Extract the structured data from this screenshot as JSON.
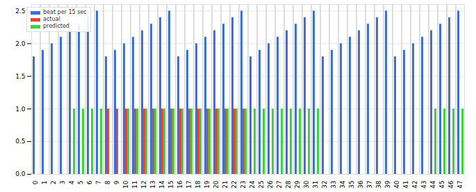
{
  "chart_data": {
    "type": "bar",
    "categories": [
      "0",
      "1",
      "2",
      "3",
      "4",
      "5",
      "6",
      "7",
      "8",
      "9",
      "10",
      "11",
      "12",
      "13",
      "14",
      "15",
      "16",
      "17",
      "18",
      "19",
      "20",
      "21",
      "22",
      "23",
      "24",
      "25",
      "26",
      "27",
      "28",
      "29",
      "30",
      "31",
      "32",
      "33",
      "34",
      "35",
      "36",
      "37",
      "38",
      "39",
      "40",
      "41",
      "42",
      "43",
      "44",
      "45",
      "46",
      "47"
    ],
    "series": [
      {
        "name": "beat per 15 sec",
        "color": "#3b6fdc",
        "values": [
          1.8,
          1.9,
          2.0,
          2.1,
          2.2,
          2.3,
          2.4,
          2.5,
          1.8,
          1.9,
          2.0,
          2.1,
          2.2,
          2.3,
          2.4,
          2.5,
          1.8,
          1.9,
          2.0,
          2.1,
          2.2,
          2.3,
          2.4,
          2.5,
          1.8,
          1.9,
          2.0,
          2.1,
          2.2,
          2.3,
          2.4,
          2.5,
          1.8,
          1.9,
          2.0,
          2.1,
          2.2,
          2.3,
          2.4,
          2.5,
          1.8,
          1.9,
          2.0,
          2.1,
          2.2,
          2.3,
          2.4,
          2.5
        ]
      },
      {
        "name": "actual",
        "color": "#e4473a",
        "values": [
          0,
          0,
          0,
          0,
          0,
          0,
          0,
          0,
          1,
          1,
          1,
          1,
          1,
          1,
          1,
          1,
          1,
          1,
          1,
          1,
          1,
          1,
          1,
          1,
          0,
          0,
          0,
          0,
          0,
          0,
          0,
          0,
          0,
          0,
          0,
          0,
          0,
          0,
          0,
          0,
          0,
          0,
          0,
          0,
          0,
          0,
          0,
          0
        ]
      },
      {
        "name": "predicted",
        "color": "#3ed23e",
        "values": [
          0,
          0,
          0,
          0,
          1,
          1,
          1,
          1,
          0,
          0,
          1,
          1,
          1,
          1,
          1,
          1,
          1,
          1,
          1,
          1,
          1,
          1,
          1,
          1,
          1,
          1,
          1,
          1,
          1,
          1,
          1,
          1,
          0,
          0,
          0,
          0,
          0,
          0,
          0,
          0,
          0,
          0,
          0,
          0,
          1,
          1,
          1,
          1
        ]
      }
    ],
    "ylim": [
      0,
      2.6
    ],
    "yticks": [
      {
        "value": 0,
        "label": "0.0"
      },
      {
        "value": 0.5,
        "label": "0.5"
      },
      {
        "value": 1,
        "label": "1.0"
      },
      {
        "value": 1.5,
        "label": "1.5"
      },
      {
        "value": 2,
        "label": "2.0"
      },
      {
        "value": 2.5,
        "label": "2.5"
      }
    ],
    "grid": true,
    "legend": "upper left"
  }
}
